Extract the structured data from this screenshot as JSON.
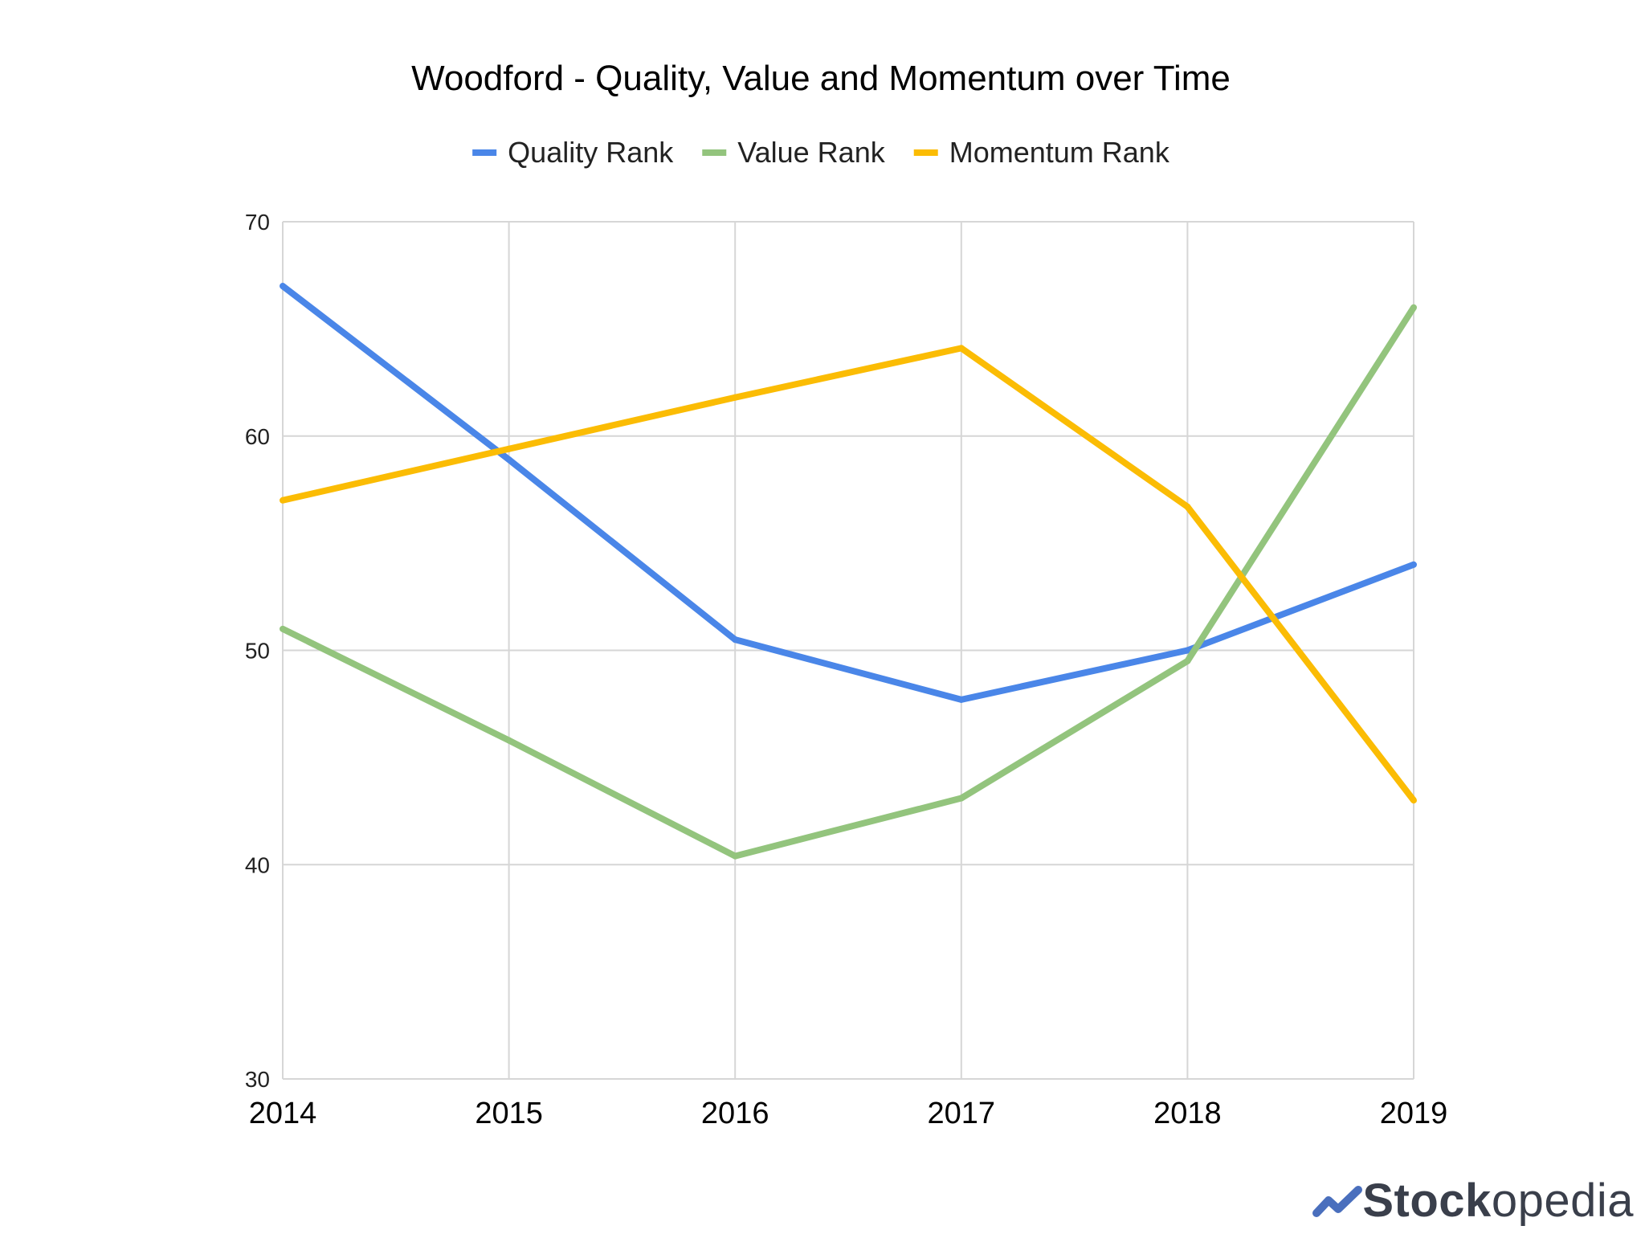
{
  "chart_data": {
    "type": "line",
    "title": "Woodford - Quality, Value and Momentum over Time",
    "xlabel": "",
    "ylabel": "",
    "x": [
      "2014",
      "2015",
      "2016",
      "2017",
      "2018",
      "2019"
    ],
    "yticks": [
      "70",
      "60",
      "50",
      "40",
      "30"
    ],
    "ylim": [
      30,
      70
    ],
    "grid": true,
    "legend_position": "top",
    "series": [
      {
        "name": "Quality Rank",
        "color": "#4a86e8",
        "values": [
          67,
          58.9,
          50.5,
          47.7,
          50,
          54
        ]
      },
      {
        "name": "Value Rank",
        "color": "#93c47d",
        "values": [
          51,
          45.8,
          40.4,
          43.1,
          49.5,
          66
        ]
      },
      {
        "name": "Momentum Rank",
        "color": "#fbbc04",
        "values": [
          57,
          59.4,
          61.8,
          64.1,
          56.7,
          43
        ]
      }
    ]
  },
  "branding": {
    "logo_text_bold": "Stock",
    "logo_text_regular": "opedia",
    "logo_icon": "stockopedia-chart-icon",
    "logo_color": "#4a6fbd"
  }
}
